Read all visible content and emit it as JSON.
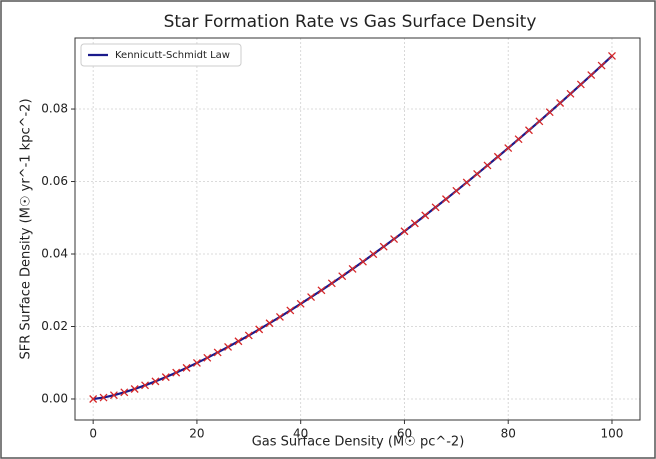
{
  "chart_data": {
    "type": "line",
    "title": "Star Formation Rate vs Gas Surface Density",
    "x_label": "Gas Surface Density (M☉ pc^-2)",
    "y_label": "SFR Surface Density (M☉ yr^-1 kpc^-2)",
    "x": [
      0,
      2,
      4,
      6,
      8,
      10,
      12,
      14,
      16,
      18,
      20,
      22,
      24,
      26,
      28,
      30,
      32,
      34,
      36,
      38,
      40,
      42,
      44,
      46,
      48,
      50,
      52,
      54,
      56,
      58,
      60,
      62,
      64,
      66,
      68,
      70,
      72,
      74,
      76,
      78,
      80,
      82,
      84,
      86,
      88,
      90,
      92,
      94,
      96,
      98,
      100
    ],
    "series": [
      {
        "name": "Kennicutt-Schmidt Law",
        "color": "#1a1a8c",
        "marker_color": "#d62728",
        "values": [
          0,
          0.000396,
          0.001045,
          0.001843,
          0.002757,
          0.003768,
          0.004863,
          0.006036,
          0.007275,
          0.00858,
          0.009944,
          0.01136,
          0.01284,
          0.01436,
          0.01593,
          0.01754,
          0.0192,
          0.0209,
          0.02264,
          0.02442,
          0.02625,
          0.02811,
          0.02999,
          0.03191,
          0.03387,
          0.03588,
          0.03789,
          0.03995,
          0.04203,
          0.04413,
          0.04628,
          0.04845,
          0.05066,
          0.05289,
          0.05514,
          0.05744,
          0.05975,
          0.06209,
          0.06444,
          0.06684,
          0.06924,
          0.07169,
          0.07415,
          0.07662,
          0.07913,
          0.08166,
          0.08421,
          0.08678,
          0.08937,
          0.092,
          0.09465
        ]
      }
    ],
    "xlim": [
      -3.5,
      105.4
    ],
    "ylim": [
      -0.0058,
      0.0996
    ],
    "xticks": [
      0,
      20,
      40,
      60,
      80,
      100
    ],
    "yticks": [
      {
        "value": 0,
        "label": "0.00"
      },
      {
        "value": 0.02,
        "label": "0.02"
      },
      {
        "value": 0.04,
        "label": "0.04"
      },
      {
        "value": 0.06,
        "label": "0.06"
      },
      {
        "value": 0.08,
        "label": "0.08"
      }
    ],
    "grid": true,
    "legend": "upper-left"
  }
}
